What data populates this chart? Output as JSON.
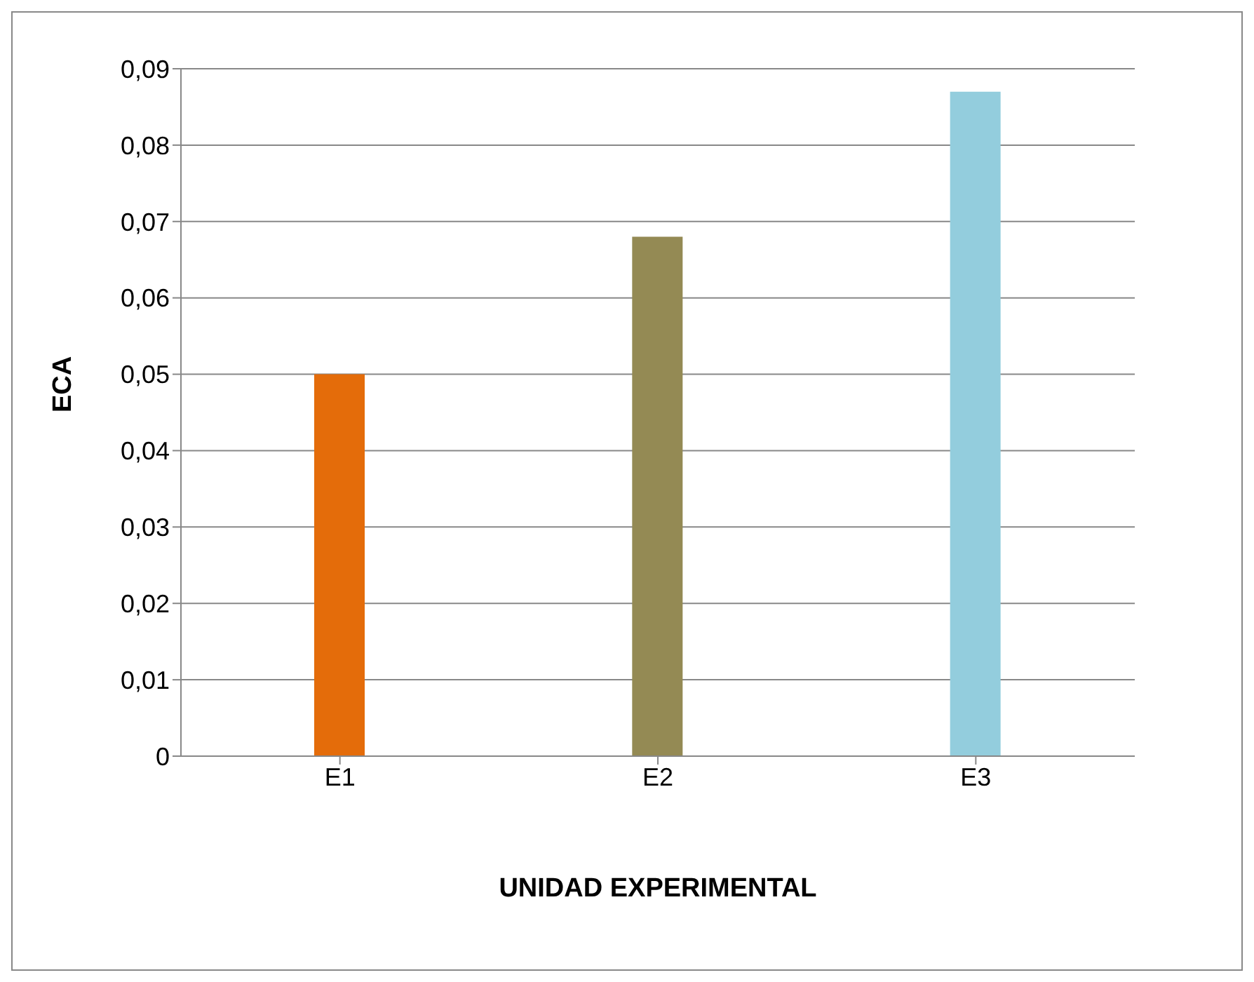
{
  "chart_data": {
    "type": "bar",
    "xlabel": "UNIDAD EXPERIMENTAL",
    "ylabel": "ECA",
    "categories": [
      "E1",
      "E2",
      "E3"
    ],
    "values": [
      0.05,
      0.068,
      0.087
    ],
    "colors": [
      "#e46c0a",
      "#948a54",
      "#93cddd"
    ],
    "ylim": [
      0,
      0.09
    ],
    "yticks": [
      0,
      {
        "value": 0.01,
        "label": "0,01"
      },
      {
        "value": 0.02,
        "label": "0,02"
      },
      {
        "value": 0.03,
        "label": "0,03"
      },
      {
        "value": 0.04,
        "label": "0,04"
      },
      {
        "value": 0.05,
        "label": "0,05"
      },
      {
        "value": 0.06,
        "label": "0,06"
      },
      {
        "value": 0.07,
        "label": "0,07"
      },
      {
        "value": 0.08,
        "label": "0,08"
      },
      {
        "value": 0.09,
        "label": "0,09"
      }
    ],
    "grid": "y"
  }
}
